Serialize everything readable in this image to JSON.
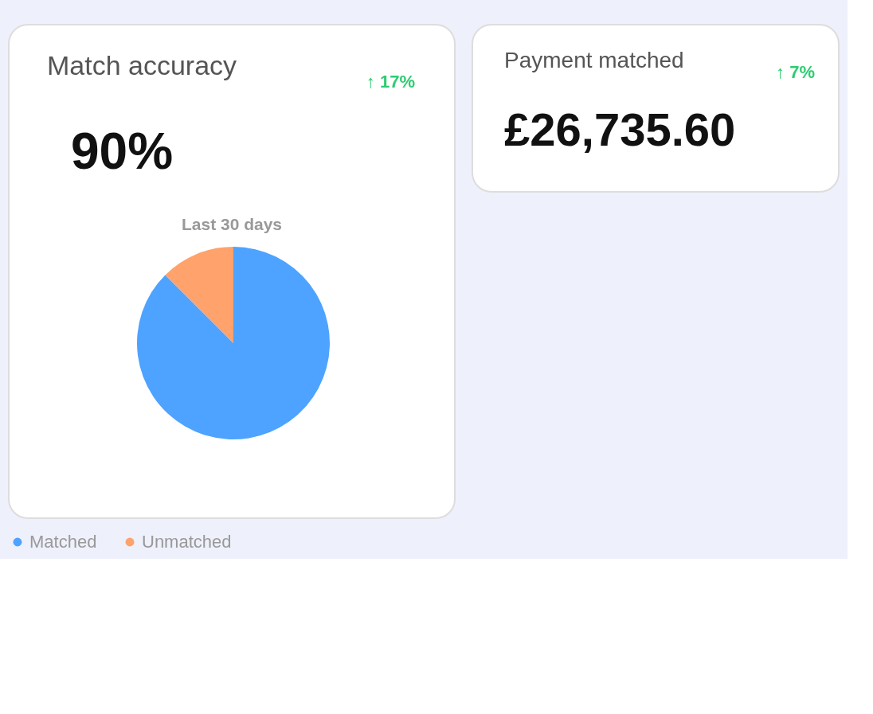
{
  "chart_data": [
    {
      "type": "pie",
      "title": "Match accuracy",
      "subtitle": "Last 30 days",
      "annotations": [
        "↑ 17%",
        "90%"
      ],
      "categories": [
        "Matched",
        "Unmatched"
      ],
      "values": [
        87.5,
        12.5
      ],
      "colors": [
        "#4da3ff",
        "#ffa26b"
      ],
      "legend": "bottom"
    },
    {
      "type": "other",
      "title": "Payment matched",
      "annotations": [
        "↑ 7%",
        "£26,735.60"
      ]
    }
  ]
}
